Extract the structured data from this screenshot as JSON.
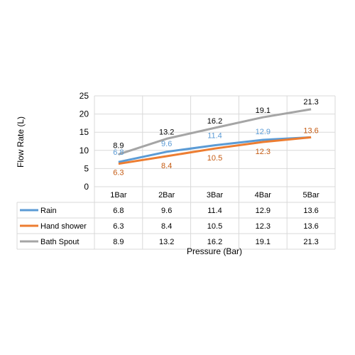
{
  "chart_data": {
    "type": "line",
    "title": "",
    "xlabel": "Pressure (Bar)",
    "ylabel": "Flow Rate (L)",
    "ylim": [
      0,
      25
    ],
    "yticks": [
      "0",
      "5",
      "10",
      "15",
      "20",
      "25"
    ],
    "categories": [
      "1Bar",
      "2Bar",
      "3Bar",
      "4Bar",
      "5Bar"
    ],
    "grid": true,
    "legend": "data-table",
    "series": [
      {
        "name": "Rain",
        "color": "#5b9bd5",
        "values": [
          6.8,
          9.6,
          11.4,
          12.9,
          13.6
        ],
        "labels": [
          "6.8",
          "9.6",
          "11.4",
          "12.9",
          ""
        ]
      },
      {
        "name": "Hand shower",
        "color": "#ed7d31",
        "values": [
          6.3,
          8.4,
          10.5,
          12.3,
          13.6
        ],
        "labels": [
          "6.3",
          "8.4",
          "10.5",
          "12.3",
          "13.6"
        ]
      },
      {
        "name": "Bath Spout",
        "color": "#a5a5a5",
        "values": [
          8.9,
          13.2,
          16.2,
          19.1,
          21.3
        ],
        "labels": [
          "8.9",
          "13.2",
          "16.2",
          "19.1",
          "21.3"
        ]
      }
    ],
    "table": [
      [
        "6.8",
        "9.6",
        "11.4",
        "12.9",
        "13.6"
      ],
      [
        "6.3",
        "8.4",
        "10.5",
        "12.3",
        "13.6"
      ],
      [
        "8.9",
        "13.2",
        "16.2",
        "19.1",
        "21.3"
      ]
    ]
  }
}
